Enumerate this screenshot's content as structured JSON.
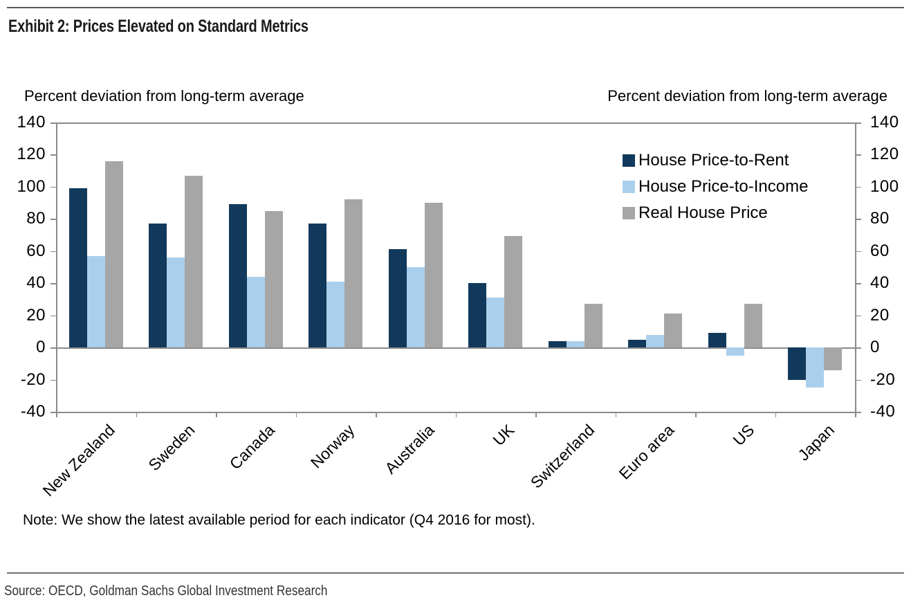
{
  "header": {
    "title": "Exhibit 2: Prices Elevated on Standard Metrics"
  },
  "axis_labels": {
    "left": "Percent deviation from long-term average",
    "right": "Percent deviation from long-term average"
  },
  "legend": {
    "items": [
      "House Price-to-Rent",
      "House Price-to-Income",
      "Real House Price"
    ]
  },
  "footer": {
    "note": "Note: We show the latest available period for each indicator (Q4 2016 for most).",
    "source": "Source: OECD, Goldman Sachs Global Investment Research"
  },
  "colors": {
    "rent": "#11395b",
    "income": "#abcfeb",
    "real": "#a6a6a6",
    "axis": "#8a8a8a",
    "top_rule": "#58595b",
    "bottom_rule": "#6e6e6e"
  },
  "chart_data": {
    "type": "bar",
    "title": "Exhibit 2: Prices Elevated on Standard Metrics",
    "categories": [
      "New Zealand",
      "Sweden",
      "Canada",
      "Norway",
      "Australia",
      "UK",
      "Switzerland",
      "Euro area",
      "US",
      "Japan"
    ],
    "series": [
      {
        "name": "House Price-to-Rent",
        "color": "#11395b",
        "values": [
          99,
          77,
          89,
          77,
          61,
          40,
          4,
          5,
          9,
          -20
        ]
      },
      {
        "name": "House Price-to-Income",
        "color": "#abcfeb",
        "values": [
          57,
          56,
          44,
          41,
          50,
          31,
          4,
          8,
          -5,
          -25
        ]
      },
      {
        "name": "Real House Price",
        "color": "#a6a6a6",
        "values": [
          116,
          107,
          85,
          92,
          90,
          69.5,
          27,
          21,
          27,
          -14
        ]
      }
    ],
    "xlabel": "",
    "ylabel_left": "Percent deviation from long-term average",
    "ylabel_right": "Percent deviation from long-term average",
    "ylim": [
      -40,
      140
    ],
    "ytick_step": 20,
    "grid": false,
    "legend_position": "upper-right-inside",
    "zero_line": true
  }
}
